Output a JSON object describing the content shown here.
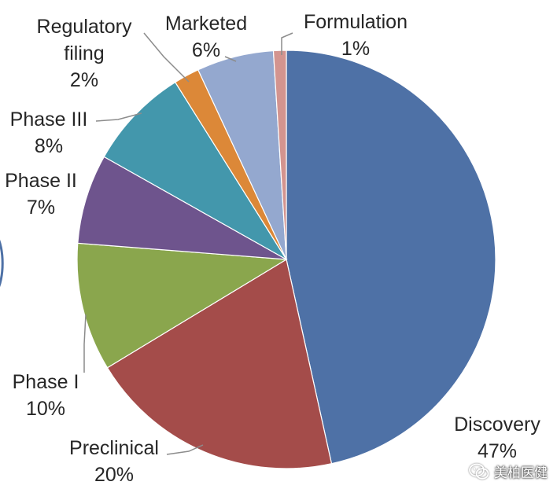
{
  "chart_data": {
    "type": "pie",
    "title": "",
    "start_angle_deg": 0,
    "direction": "clockwise",
    "slices": [
      {
        "label": "Discovery",
        "value": 47,
        "value_label": "47%",
        "color": "#4e71a6"
      },
      {
        "label": "Preclinical",
        "value": 20,
        "value_label": "20%",
        "color": "#a44c4a"
      },
      {
        "label": "Phase I",
        "value": 10,
        "value_label": "10%",
        "color": "#8aa64d"
      },
      {
        "label": "Phase II",
        "value": 7,
        "value_label": "7%",
        "color": "#6e548d"
      },
      {
        "label": "Phase III",
        "value": 8,
        "value_label": "8%",
        "color": "#4397ac"
      },
      {
        "label": "Regulatory filing",
        "value": 2,
        "value_label": "2%",
        "color": "#dc8838"
      },
      {
        "label": "Marketed",
        "value": 6,
        "value_label": "6%",
        "color": "#94a8cf"
      },
      {
        "label": "Formulation",
        "value": 1,
        "value_label": "1%",
        "color": "#d3948f"
      }
    ]
  },
  "watermark": {
    "text": "美柏医健",
    "icon": "wechat-icon"
  }
}
